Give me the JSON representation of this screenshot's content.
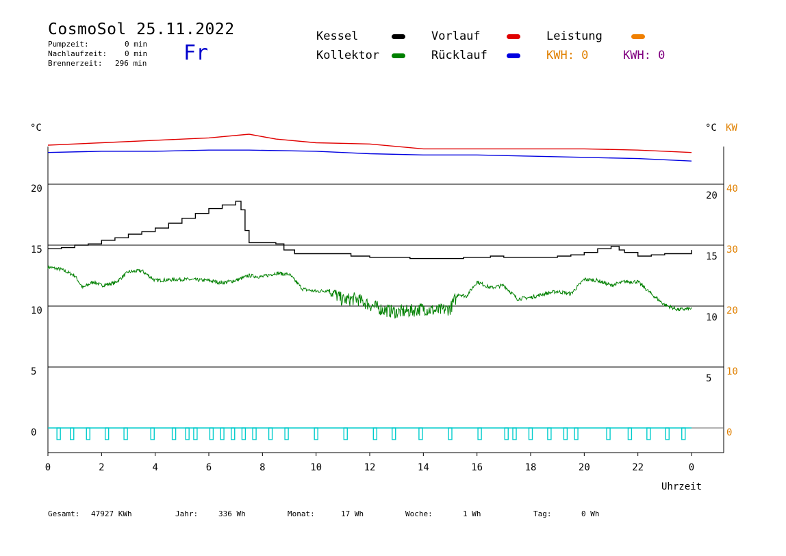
{
  "header": {
    "title": "CosmoSol 25.11.2022",
    "day": "Fr",
    "stats": [
      {
        "label": "Pumpzeit:",
        "value": "0 min"
      },
      {
        "label": "Nachlaufzeit:",
        "value": "0 min"
      },
      {
        "label": "Brennerzeit:",
        "value": "296 min"
      }
    ]
  },
  "legend": {
    "kessel": {
      "label": "Kessel",
      "color": "#000000"
    },
    "kollektor": {
      "label": "Kollektor",
      "color": "#008000"
    },
    "vorlauf": {
      "label": "Vorlauf",
      "color": "#e00000"
    },
    "ruecklauf": {
      "label": "Rücklauf",
      "color": "#0000e0"
    },
    "leistung": {
      "label": "Leistung",
      "color": "#f08000"
    },
    "kwh1": {
      "text": "KWH: 0",
      "color": "#e08000"
    },
    "kwh2": {
      "text": "KWH: 0",
      "color": "#800080"
    }
  },
  "footer": [
    {
      "label": "Gesamt:",
      "value": "47927 KWh"
    },
    {
      "label": "Jahr:",
      "value": "336 Wh"
    },
    {
      "label": "Monat:",
      "value": "17 Wh"
    },
    {
      "label": "Woche:",
      "value": "1 Wh"
    },
    {
      "label": "Tag:",
      "value": "0 Wh"
    }
  ],
  "chart_data": {
    "type": "line",
    "xlabel": "Uhrzeit",
    "x_ticks": [
      "0",
      "2",
      "4",
      "6",
      "8",
      "10",
      "12",
      "14",
      "16",
      "18",
      "20",
      "22",
      "0"
    ],
    "left_unit": "°C",
    "right_unit_temp": "°C",
    "right_unit_power": "KW",
    "left_ticks": [
      0,
      5,
      10,
      15,
      20
    ],
    "right_temp_ticks": [
      5,
      10,
      15,
      20
    ],
    "right_power_ticks": [
      0,
      10,
      20,
      30,
      40
    ],
    "xlim": [
      0,
      24
    ],
    "colors": {
      "grid": "#000000",
      "power": "#e08000",
      "pump": "#00cccc"
    },
    "series": [
      {
        "name": "Kessel",
        "color": "#000000",
        "step": true,
        "points": [
          [
            0,
            14.7
          ],
          [
            0.5,
            14.8
          ],
          [
            1,
            15.0
          ],
          [
            1.5,
            15.1
          ],
          [
            2,
            15.4
          ],
          [
            2.5,
            15.6
          ],
          [
            3,
            15.9
          ],
          [
            3.5,
            16.1
          ],
          [
            4,
            16.4
          ],
          [
            4.5,
            16.8
          ],
          [
            5,
            17.2
          ],
          [
            5.5,
            17.6
          ],
          [
            6,
            18.0
          ],
          [
            6.5,
            18.3
          ],
          [
            7.0,
            18.6
          ],
          [
            7.2,
            17.9
          ],
          [
            7.35,
            16.2
          ],
          [
            7.5,
            15.2
          ],
          [
            8.0,
            15.2
          ],
          [
            8.5,
            15.1
          ],
          [
            8.8,
            14.6
          ],
          [
            9.2,
            14.3
          ],
          [
            10,
            14.3
          ],
          [
            11,
            14.3
          ],
          [
            11.3,
            14.1
          ],
          [
            12,
            14.0
          ],
          [
            13,
            14.0
          ],
          [
            13.5,
            13.9
          ],
          [
            14.5,
            13.9
          ],
          [
            15.5,
            14.0
          ],
          [
            16.5,
            14.1
          ],
          [
            17,
            14.0
          ],
          [
            18,
            14.0
          ],
          [
            19,
            14.1
          ],
          [
            19.5,
            14.2
          ],
          [
            20,
            14.4
          ],
          [
            20.5,
            14.7
          ],
          [
            21,
            14.9
          ],
          [
            21.3,
            14.6
          ],
          [
            21.5,
            14.4
          ],
          [
            22,
            14.1
          ],
          [
            22.5,
            14.2
          ],
          [
            23,
            14.3
          ],
          [
            24,
            14.6
          ]
        ]
      },
      {
        "name": "Kollektor",
        "color": "#008000",
        "noise": true,
        "points": [
          [
            0,
            13.2
          ],
          [
            0.5,
            13.0
          ],
          [
            1.0,
            12.5
          ],
          [
            1.3,
            11.5
          ],
          [
            1.7,
            12.0
          ],
          [
            2.0,
            11.7
          ],
          [
            2.5,
            11.9
          ],
          [
            3.0,
            12.8
          ],
          [
            3.5,
            12.9
          ],
          [
            4.0,
            12.1
          ],
          [
            5.0,
            12.2
          ],
          [
            6.0,
            12.1
          ],
          [
            6.5,
            11.9
          ],
          [
            7.0,
            12.1
          ],
          [
            7.5,
            12.5
          ],
          [
            8.0,
            12.4
          ],
          [
            8.5,
            12.7
          ],
          [
            9.0,
            12.6
          ],
          [
            9.5,
            11.4
          ],
          [
            10.0,
            11.2
          ],
          [
            10.5,
            11.3
          ],
          [
            11.0,
            10.5
          ],
          [
            11.5,
            10.6
          ],
          [
            12.0,
            10.1
          ],
          [
            12.5,
            9.7
          ],
          [
            13.0,
            9.5
          ],
          [
            13.5,
            9.6
          ],
          [
            14.0,
            9.8
          ],
          [
            14.5,
            9.6
          ],
          [
            15.0,
            9.8
          ],
          [
            15.3,
            11.0
          ],
          [
            15.6,
            10.8
          ],
          [
            16.0,
            12.0
          ],
          [
            16.5,
            11.5
          ],
          [
            17.0,
            11.7
          ],
          [
            17.5,
            10.6
          ],
          [
            18.0,
            10.7
          ],
          [
            18.5,
            11.0
          ],
          [
            19.0,
            11.2
          ],
          [
            19.5,
            11.0
          ],
          [
            20.0,
            12.2
          ],
          [
            20.5,
            12.1
          ],
          [
            21.0,
            11.7
          ],
          [
            21.5,
            12.0
          ],
          [
            22.0,
            12.0
          ],
          [
            22.5,
            11.0
          ],
          [
            23.0,
            10.1
          ],
          [
            23.5,
            9.7
          ],
          [
            24.0,
            9.8
          ]
        ]
      },
      {
        "name": "Vorlauf",
        "color": "#e00000",
        "points": [
          [
            0,
            23.2
          ],
          [
            2,
            23.4
          ],
          [
            4,
            23.6
          ],
          [
            6,
            23.8
          ],
          [
            7.5,
            24.1
          ],
          [
            8.5,
            23.7
          ],
          [
            10,
            23.4
          ],
          [
            12,
            23.3
          ],
          [
            14,
            22.9
          ],
          [
            16,
            22.9
          ],
          [
            18,
            22.9
          ],
          [
            20,
            22.9
          ],
          [
            22,
            22.8
          ],
          [
            24,
            22.6
          ]
        ]
      },
      {
        "name": "Rücklauf",
        "color": "#0000e0",
        "points": [
          [
            0,
            22.6
          ],
          [
            2,
            22.7
          ],
          [
            4,
            22.7
          ],
          [
            6,
            22.8
          ],
          [
            7.5,
            22.8
          ],
          [
            10,
            22.7
          ],
          [
            12,
            22.5
          ],
          [
            14,
            22.4
          ],
          [
            16,
            22.4
          ],
          [
            18,
            22.3
          ],
          [
            20,
            22.2
          ],
          [
            22,
            22.1
          ],
          [
            24,
            21.9
          ]
        ]
      }
    ],
    "pump_pulses": [
      0.4,
      0.9,
      1.5,
      2.2,
      2.9,
      3.9,
      4.7,
      5.2,
      5.5,
      6.1,
      6.5,
      6.9,
      7.3,
      7.7,
      8.3,
      8.9,
      10.0,
      11.1,
      12.2,
      12.9,
      13.9,
      15.0,
      16.1,
      17.1,
      17.4,
      18.0,
      18.7,
      19.3,
      19.7,
      20.9,
      21.7,
      22.4,
      23.1,
      23.7
    ]
  }
}
